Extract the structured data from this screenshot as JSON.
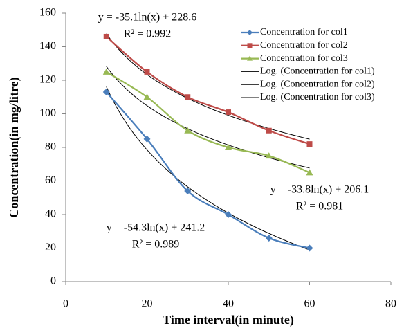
{
  "chart_data": {
    "type": "scatter",
    "x_label": "Time interval(in minute)",
    "y_label": "Concentration(in mg/litre)",
    "x": [
      10,
      20,
      30,
      40,
      50,
      60
    ],
    "series": [
      {
        "name": "Concentration for col1",
        "color": "#4a7ebb",
        "marker": "diamond",
        "values": [
          113,
          85,
          54,
          40,
          26,
          20
        ]
      },
      {
        "name": "Concentration for col2",
        "color": "#be4b48",
        "marker": "square",
        "values": [
          146,
          125,
          110,
          101,
          90,
          82
        ]
      },
      {
        "name": "Concentration for col3",
        "color": "#98b954",
        "marker": "triangle",
        "values": [
          125,
          110,
          90,
          80,
          75,
          65
        ]
      }
    ],
    "trendlines": [
      {
        "name": "Log. (Concentration for col1)",
        "color": "#000000",
        "slope": -54.3,
        "intercept": 241.2,
        "equation": "y = -54.3ln(x) + 241.2",
        "r2": "R² = 0.989"
      },
      {
        "name": "Log. (Concentration for col2)",
        "color": "#000000",
        "slope": -35.1,
        "intercept": 228.6,
        "equation": "y = -35.1ln(x) + 228.6",
        "r2": "R² = 0.992"
      },
      {
        "name": "Log. (Concentration for col3)",
        "color": "#000000",
        "slope": -33.8,
        "intercept": 206.1,
        "equation": "y = -33.8ln(x) + 206.1",
        "r2": "R² = 0.981"
      }
    ],
    "xlim": [
      0,
      80
    ],
    "xticks": [
      0,
      20,
      40,
      60,
      80
    ],
    "ylim": [
      0,
      160
    ],
    "yticks": [
      0,
      20,
      40,
      60,
      80,
      100,
      120,
      140,
      160
    ],
    "grid": false,
    "legend": "top-right"
  }
}
